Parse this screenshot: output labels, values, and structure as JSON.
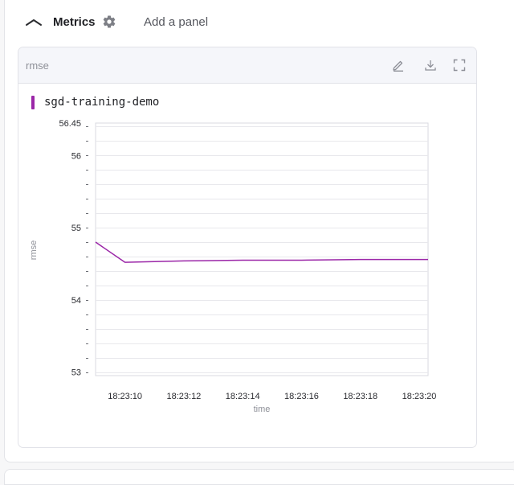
{
  "section": {
    "title": "Metrics",
    "add_panel_label": "Add a panel"
  },
  "icons": {
    "collapse": "chevron-up-icon",
    "settings": "gear-icon",
    "edit": "pencil-icon",
    "download": "download-icon",
    "fullscreen": "fullscreen-icon"
  },
  "panel": {
    "title": "rmse"
  },
  "colors": {
    "series": "#9b27a8",
    "grid": "#e8e8ec"
  },
  "chart_data": {
    "type": "line",
    "title": "",
    "xlabel": "time",
    "ylabel": "rmse",
    "series": [
      {
        "name": "sgd-training-demo",
        "color": "#9b27a8",
        "x": [
          "18:23:09.0",
          "18:23:10.0",
          "18:23:12.0",
          "18:23:14.0",
          "18:23:16.0",
          "18:23:18.0",
          "18:23:20.0",
          "18:23:20.3"
        ],
        "y": [
          54.8,
          54.52,
          54.54,
          54.55,
          54.55,
          54.56,
          54.56,
          54.56
        ]
      }
    ],
    "x_ticks": [
      "18:23:10",
      "18:23:12",
      "18:23:14",
      "18:23:16",
      "18:23:18",
      "18:23:20"
    ],
    "y_ticks": [
      "53",
      "54",
      "55",
      "56",
      "56.45"
    ],
    "ylim": [
      52.95,
      56.45
    ],
    "xlim_seconds": [
      9.0,
      20.3
    ],
    "grid": true,
    "legend_position": "top-left"
  }
}
